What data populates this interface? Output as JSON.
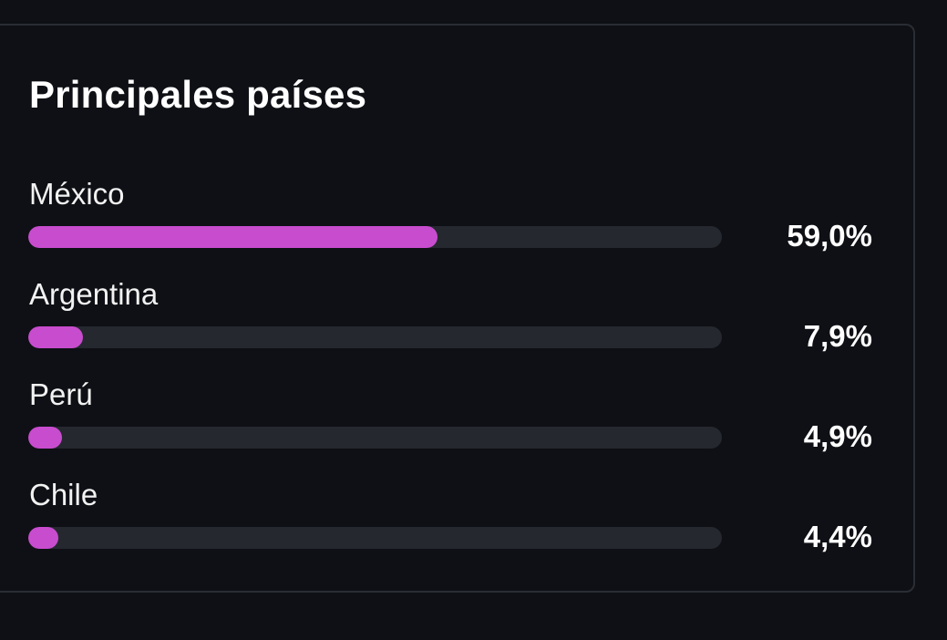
{
  "card": {
    "title": "Principales países"
  },
  "countries": [
    {
      "name": "México",
      "value_label": "59,0%",
      "percent": 59.0
    },
    {
      "name": "Argentina",
      "value_label": "7,9%",
      "percent": 7.9
    },
    {
      "name": "Perú",
      "value_label": "4,9%",
      "percent": 4.9
    },
    {
      "name": "Chile",
      "value_label": "4,4%",
      "percent": 4.4
    }
  ],
  "colors": {
    "background": "#0e1015",
    "card_border": "#2a2d33",
    "bar_track": "#25282e",
    "bar_fill": "#c84cce",
    "text": "#ffffff"
  }
}
